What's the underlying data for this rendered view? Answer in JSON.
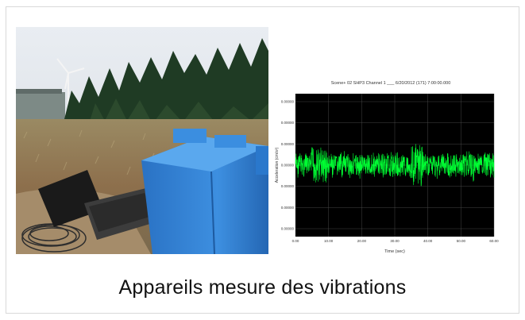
{
  "caption": "Appareils mesure des vibrations",
  "photo": {
    "scene": "field-with-wind-turbine-trees-blue-enclosure-laptop"
  },
  "seismogram": {
    "header": "Scene+ 02 SHP3   Channel 1 ___  6/20/2012 (171) 7:00:00.000",
    "ylabel": "Acceleration (cm/s²)",
    "xlabel": "Time (sec)",
    "y_ticks": [
      "0.00000",
      "0.00000",
      "0.00000",
      "0.00000",
      "0.00000",
      "0.00000",
      "0.00000"
    ],
    "x_ticks": [
      "0.00",
      "10.00",
      "20.00",
      "30.00",
      "40.00",
      "50.00",
      "60.00"
    ],
    "trace_color": "#00ff33",
    "background": "#000000"
  }
}
